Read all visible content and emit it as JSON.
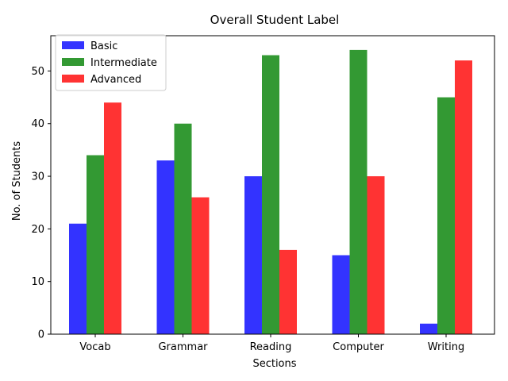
{
  "chart_data": {
    "type": "bar",
    "title": "Overall Student Label",
    "xlabel": "Sections",
    "ylabel": "No. of Students",
    "categories": [
      "Vocab",
      "Grammar",
      "Reading",
      "Computer",
      "Writing"
    ],
    "series": [
      {
        "name": "Basic",
        "values": [
          21,
          33,
          30,
          15,
          2
        ],
        "color": "#3333ff"
      },
      {
        "name": "Intermediate",
        "values": [
          34,
          40,
          53,
          54,
          45
        ],
        "color": "#339933"
      },
      {
        "name": "Advanced",
        "values": [
          44,
          26,
          16,
          30,
          52
        ],
        "color": "#ff3333"
      }
    ],
    "ylim": [
      0,
      56.7
    ],
    "yticks": [
      0,
      10,
      20,
      30,
      40,
      50
    ],
    "grid": false,
    "legend_position": "top-left"
  }
}
